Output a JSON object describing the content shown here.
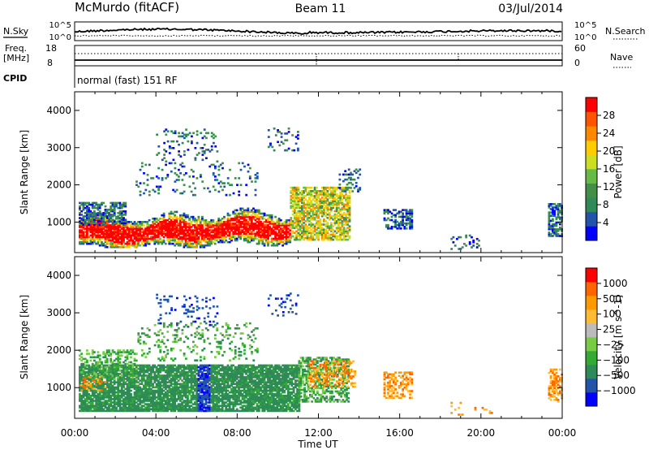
{
  "header": {
    "station": "McMurdo (fitACF)",
    "beam": "Beam 11",
    "date": "03/Jul/2014"
  },
  "noise_panel": {
    "left_label": "N.Sky",
    "right_label": "N.Search",
    "tick_high": "10^5",
    "tick_low": "10^0"
  },
  "freq_panel": {
    "left_label_1": "Freq.",
    "left_label_2": "[MHz]",
    "tick_high": "18",
    "tick_low": "8",
    "right_label": "Nave",
    "right_tick_high": "60",
    "right_tick_low": "0"
  },
  "cpid": {
    "label": "CPID",
    "value": "normal (fast) 151 RF"
  },
  "colors": {
    "power": [
      "#0000ff",
      "#2255aa",
      "#2e8b57",
      "#448f46",
      "#66bb44",
      "#ccdd22",
      "#ffcc00",
      "#ff8800",
      "#ff5500",
      "#ff0000"
    ],
    "velocity": [
      "#ff0000",
      "#ff6600",
      "#ff9900",
      "#ffbb33",
      "#bbbbbb",
      "#77cc44",
      "#33aa33",
      "#2e8b57",
      "#2255aa",
      "#0000ff"
    ]
  },
  "chart_data": [
    {
      "type": "heatmap",
      "xlabel": "Time UT",
      "ylabel": "Slant Range [km]",
      "x_ticks": [
        "00:00",
        "04:00",
        "08:00",
        "12:00",
        "16:00",
        "20:00",
        "00:00"
      ],
      "y_ticks": [
        "1000",
        "2000",
        "3000",
        "4000"
      ],
      "ylim": [
        180,
        4500
      ],
      "xlim_hours": [
        0,
        24
      ],
      "colorbar": {
        "label": "Power [dB]",
        "ticks": [
          "4",
          "8",
          "12",
          "16",
          "20",
          "24",
          "28"
        ],
        "range": [
          0,
          30
        ]
      }
    },
    {
      "type": "heatmap",
      "xlabel": "Time UT",
      "ylabel": "Slant Range [km]",
      "x_ticks": [
        "00:00",
        "04:00",
        "08:00",
        "12:00",
        "16:00",
        "20:00",
        "00:00"
      ],
      "y_ticks": [
        "1000",
        "2000",
        "3000",
        "4000"
      ],
      "ylim": [
        180,
        4500
      ],
      "xlim_hours": [
        0,
        24
      ],
      "colorbar": {
        "label": "Velocity [m s^-1]",
        "ticks": [
          "1000",
          "500",
          "100",
          "25",
          "−25",
          "−100",
          "−500",
          "−1000"
        ]
      }
    }
  ]
}
